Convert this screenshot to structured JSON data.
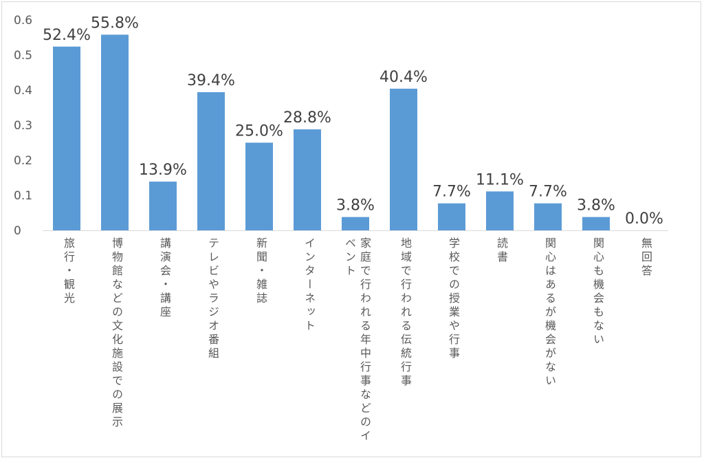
{
  "chart_data": {
    "type": "bar",
    "title": "",
    "xlabel": "",
    "ylabel": "",
    "ylim": [
      0,
      0.6
    ],
    "yticks": [
      "0",
      "0.1",
      "0.2",
      "0.3",
      "0.4",
      "0.5",
      "0.6"
    ],
    "grid": false,
    "bar_color": "#5b9bd5",
    "categories": [
      "旅行・観光",
      "博物館などの文化施設での展示",
      "講演会・講座",
      "テレビやラジオ番組",
      "新聞・雑誌",
      "インターネット",
      "家庭で行われる年中行事などのイベント",
      "地域で行われる伝統行事",
      "学校での授業や行事",
      "読書",
      "関心はあるが機会がない",
      "関心も機会もない",
      "無回答"
    ],
    "values": [
      0.524,
      0.558,
      0.139,
      0.394,
      0.25,
      0.288,
      0.038,
      0.404,
      0.077,
      0.111,
      0.077,
      0.038,
      0.0
    ],
    "data_labels": [
      "52.4%",
      "55.8%",
      "13.9%",
      "39.4%",
      "25.0%",
      "28.8%",
      "3.8%",
      "40.4%",
      "7.7%",
      "11.1%",
      "7.7%",
      "3.8%",
      "0.0%"
    ]
  }
}
